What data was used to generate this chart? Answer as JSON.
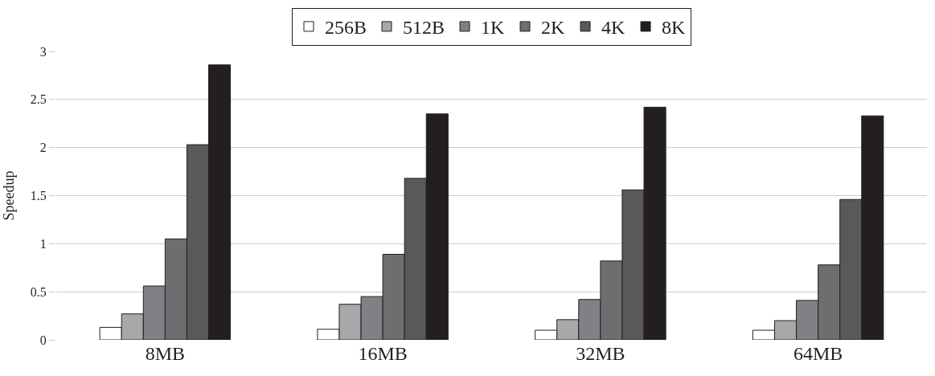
{
  "chart_data": {
    "type": "bar",
    "ylabel": "Speedup",
    "categories": [
      "8MB",
      "16MB",
      "32MB",
      "64MB"
    ],
    "series": [
      {
        "name": "256B",
        "color": "#ffffff",
        "values": [
          0.13,
          0.11,
          0.1,
          0.1
        ]
      },
      {
        "name": "512B",
        "color": "#a7a8aa",
        "values": [
          0.27,
          0.37,
          0.21,
          0.2
        ]
      },
      {
        "name": "1K",
        "color": "#808184",
        "values": [
          0.56,
          0.45,
          0.42,
          0.41
        ]
      },
      {
        "name": "2K",
        "color": "#6d6e70",
        "values": [
          1.05,
          0.89,
          0.82,
          0.78
        ]
      },
      {
        "name": "4K",
        "color": "#58595b",
        "values": [
          2.03,
          1.68,
          1.56,
          1.46
        ]
      },
      {
        "name": "8K",
        "color": "#231f20",
        "values": [
          2.86,
          2.35,
          2.42,
          2.33
        ]
      }
    ],
    "ylim": [
      0,
      3
    ],
    "yticks": [
      0,
      0.5,
      1,
      1.5,
      2,
      2.5,
      3
    ],
    "grid": "y",
    "legend": "top"
  }
}
